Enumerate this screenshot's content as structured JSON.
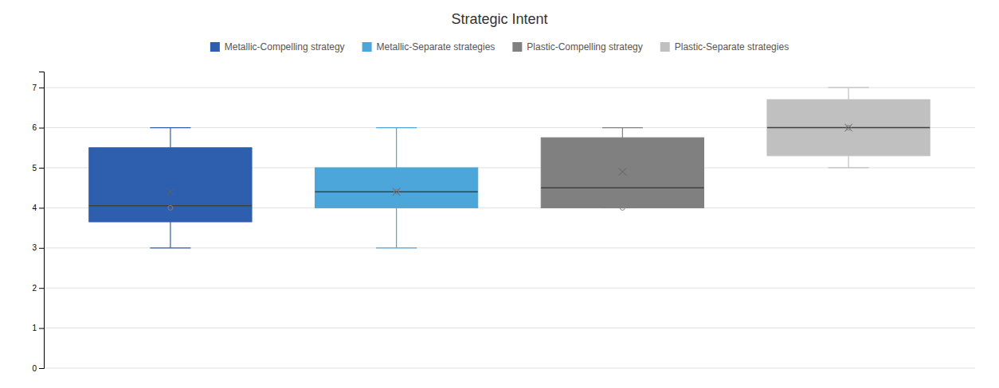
{
  "chart_data": {
    "type": "box",
    "title": "Strategic Intent",
    "series": [
      {
        "name": "Metallic-Compelling strategy",
        "color": "#2E5FAF",
        "whisker_low": 3.0,
        "q1": 3.65,
        "median": 4.05,
        "q3": 5.5,
        "whisker_high": 6.0,
        "mean": 4.4,
        "mean_circle": 4.0
      },
      {
        "name": "Metallic-Separate strategies",
        "color": "#4DA6D9",
        "whisker_low": 3.0,
        "q1": 4.0,
        "median": 4.4,
        "q3": 5.0,
        "whisker_high": 6.0,
        "mean": 4.4,
        "mean_circle": 4.4
      },
      {
        "name": "Plastic-Compelling strategy",
        "color": "#808080",
        "whisker_low": 4.0,
        "q1": 4.0,
        "median": 4.5,
        "q3": 5.75,
        "whisker_high": 6.0,
        "mean": 4.9,
        "mean_circle": 4.0
      },
      {
        "name": "Plastic-Separate strategies",
        "color": "#C0C0C0",
        "whisker_low": 5.0,
        "q1": 5.3,
        "median": 6.0,
        "q3": 6.7,
        "whisker_high": 7.0,
        "mean": 6.0,
        "mean_circle": 6.0
      }
    ],
    "ylim": [
      0,
      7.4
    ],
    "yticks": [
      0,
      1,
      2,
      3,
      4,
      5,
      6,
      7
    ],
    "grid": true,
    "legend": "top",
    "tick_labels": "y"
  }
}
